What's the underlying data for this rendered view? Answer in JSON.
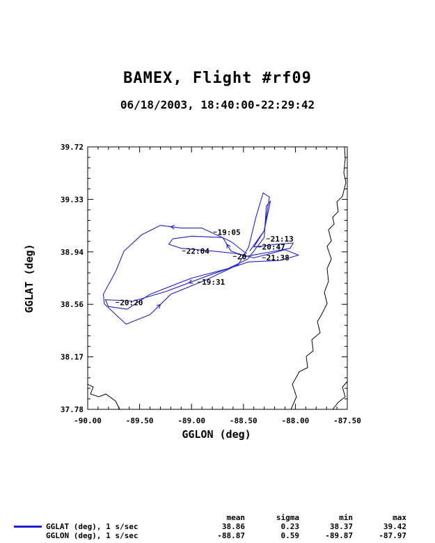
{
  "title": "BAMEX, Flight #rf09",
  "subtitle": "06/18/2003, 18:40:00-22:29:42",
  "chart_data": {
    "type": "line",
    "xlabel": "GGLON (deg)",
    "ylabel": "GGLAT (deg)",
    "xlim": [
      -90.0,
      -87.5
    ],
    "ylim": [
      37.78,
      39.72
    ],
    "x_ticks": [
      "-90.00",
      "-89.50",
      "-89.00",
      "-88.50",
      "-88.00",
      "-87.50"
    ],
    "y_ticks": [
      "37.78",
      "38.17",
      "38.56",
      "38.94",
      "39.33",
      "39.72"
    ],
    "colors": {
      "track": "#1f1fcf",
      "border": "#000000"
    },
    "track": [
      [
        -88.47,
        38.93
      ],
      [
        -88.62,
        39.02
      ],
      [
        -88.9,
        39.12
      ],
      [
        -89.1,
        39.12
      ],
      [
        -89.3,
        39.14
      ],
      [
        -89.48,
        39.07
      ],
      [
        -89.65,
        38.95
      ],
      [
        -89.73,
        38.8
      ],
      [
        -89.85,
        38.63
      ],
      [
        -89.84,
        38.56
      ],
      [
        -89.73,
        38.48
      ],
      [
        -89.63,
        38.41
      ],
      [
        -89.4,
        38.48
      ],
      [
        -89.2,
        38.63
      ],
      [
        -88.85,
        38.74
      ],
      [
        -88.55,
        38.85
      ],
      [
        -88.45,
        38.98
      ],
      [
        -88.38,
        39.2
      ],
      [
        -88.31,
        39.38
      ],
      [
        -88.25,
        39.35
      ],
      [
        -88.3,
        39.1
      ],
      [
        -88.4,
        38.98
      ],
      [
        -88.18,
        39.0
      ],
      [
        -88.02,
        39.01
      ],
      [
        -88.05,
        38.97
      ],
      [
        -88.48,
        38.91
      ],
      [
        -88.62,
        38.95
      ],
      [
        -88.7,
        39.05
      ],
      [
        -89.0,
        39.06
      ],
      [
        -89.18,
        39.04
      ],
      [
        -89.22,
        39.0
      ],
      [
        -89.1,
        38.97
      ],
      [
        -88.8,
        38.95
      ],
      [
        -88.55,
        38.93
      ],
      [
        -88.4,
        38.9
      ],
      [
        -88.1,
        38.96
      ],
      [
        -87.97,
        38.92
      ],
      [
        -88.15,
        38.88
      ],
      [
        -88.45,
        38.87
      ],
      [
        -88.8,
        38.78
      ],
      [
        -89.25,
        38.65
      ],
      [
        -89.56,
        38.58
      ],
      [
        -89.83,
        38.59
      ],
      [
        -89.8,
        38.54
      ],
      [
        -89.62,
        38.52
      ],
      [
        -89.4,
        38.63
      ],
      [
        -89.0,
        38.75
      ],
      [
        -88.65,
        38.82
      ],
      [
        -88.46,
        38.89
      ],
      [
        -88.3,
        39.05
      ],
      [
        -88.28,
        39.28
      ],
      [
        -88.24,
        39.32
      ],
      [
        -88.3,
        39.1
      ],
      [
        -88.44,
        38.95
      ]
    ],
    "time_labels": [
      {
        "text": "19:05",
        "lon": -88.75,
        "lat": 39.07
      },
      {
        "text": "22:04",
        "lon": -89.05,
        "lat": 38.93
      },
      {
        "text": "19:31",
        "lon": -88.9,
        "lat": 38.7
      },
      {
        "text": "21:13",
        "lon": -88.24,
        "lat": 39.02
      },
      {
        "text": "20:47",
        "lon": -88.32,
        "lat": 38.96
      },
      {
        "text": "20",
        "lon": -88.56,
        "lat": 38.89
      },
      {
        "text": "21:38",
        "lon": -88.28,
        "lat": 38.88
      },
      {
        "text": "20:20",
        "lon": -89.69,
        "lat": 38.55
      }
    ]
  },
  "stats": {
    "headers": {
      "mean": "mean",
      "sigma": "sigma",
      "min": "min",
      "max": "max"
    },
    "rows": [
      {
        "label": "GGLAT (deg), 1 s/sec",
        "mean": "38.86",
        "sigma": "0.23",
        "min": "38.37",
        "max": "39.42"
      },
      {
        "label": "GGLON (deg), 1 s/sec",
        "mean": "-88.87",
        "sigma": "0.59",
        "min": "-89.87",
        "max": "-87.97"
      }
    ]
  }
}
